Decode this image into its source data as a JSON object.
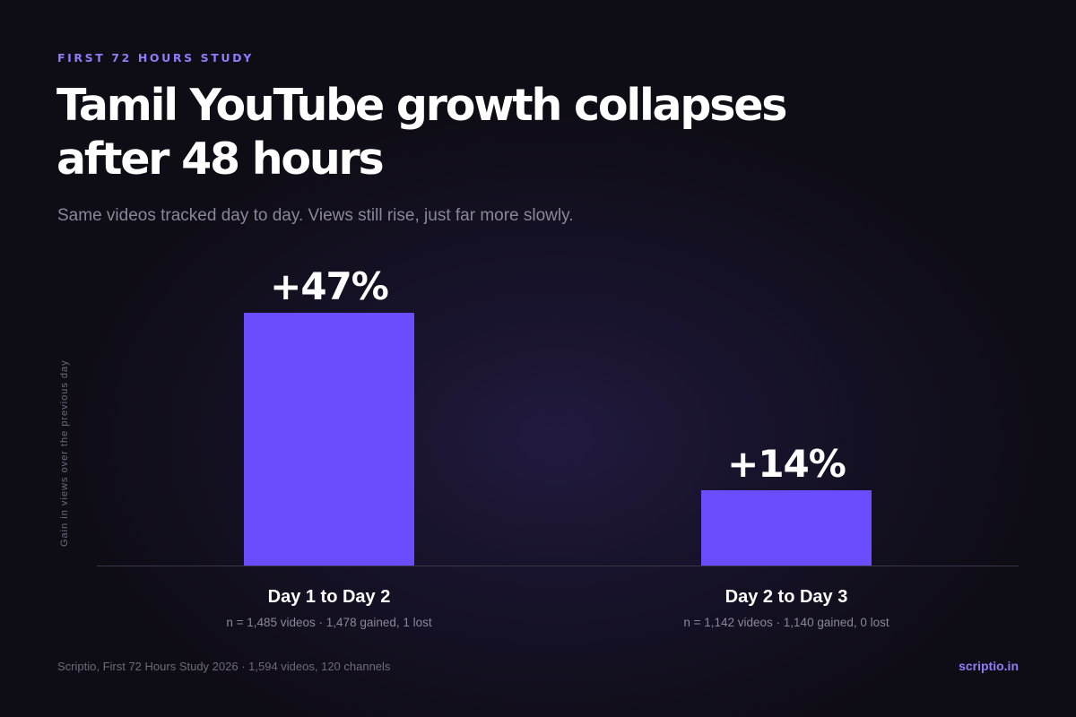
{
  "header": {
    "eyebrow": "FIRST 72 HOURS STUDY",
    "title": "Tamil YouTube growth collapses after 48 hours",
    "subtitle": "Same videos tracked day to day. Views still rise, just far more slowly."
  },
  "chart_data": {
    "type": "bar",
    "title": "Tamil YouTube growth collapses after 48 hours",
    "subtitle": "Same videos tracked day to day. Views still rise, just far more slowly.",
    "ylabel": "Gain in views over the previous day",
    "xlabel": "",
    "categories": [
      "Day 1 to Day 2",
      "Day 2 to Day 3"
    ],
    "values": [
      47,
      14
    ],
    "value_labels": [
      "+47%",
      "+14%"
    ],
    "sample_notes": [
      "n = 1,485 videos · 1,478 gained, 1 lost",
      "n = 1,142 videos · 1,140 gained, 0 lost"
    ],
    "ylim": [
      0,
      47
    ],
    "grid": false,
    "legend": "none",
    "bar_color": "#6c4dfd",
    "baseline_color": "#3a3748"
  },
  "footer": {
    "source": "Scriptio, First 72 Hours Study 2026 · 1,594 videos, 120 channels",
    "brand": "scriptio.in"
  },
  "colors": {
    "background": "#0e0c14",
    "accent": "#8f7cf8",
    "bar": "#6c4dfd",
    "muted_text": "#8a8798"
  }
}
